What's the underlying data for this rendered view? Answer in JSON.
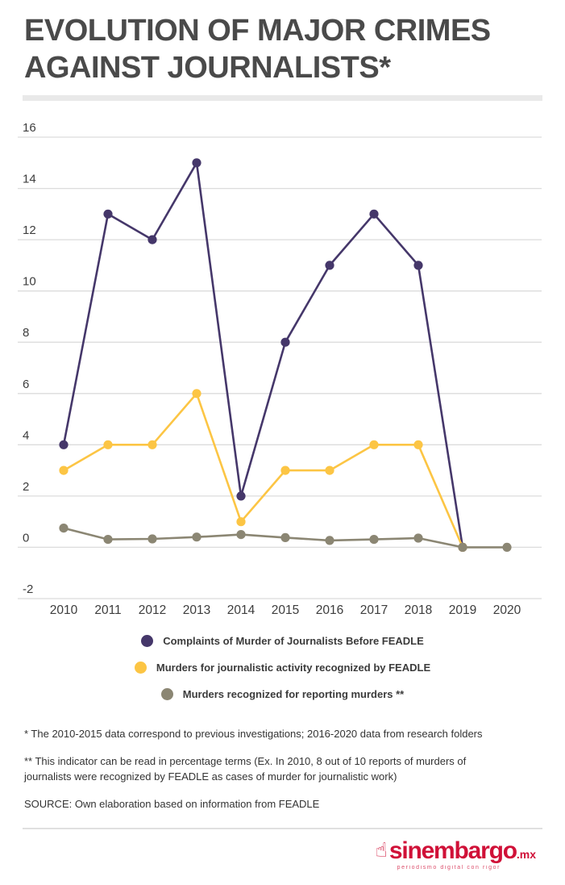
{
  "title": "EVOLUTION OF MAJOR CRIMES AGAINST JOURNALISTS*",
  "chart_data": {
    "type": "line",
    "title": "Evolution of major crimes against journalists",
    "x": [
      2010,
      2011,
      2012,
      2013,
      2014,
      2015,
      2016,
      2017,
      2018,
      2019,
      2020
    ],
    "series": [
      {
        "name": "Complaints of Murder of Journalists Before FEADLE",
        "color": "#45376a",
        "values": [
          4,
          13,
          12,
          15,
          2,
          8,
          11,
          13,
          11,
          0,
          null
        ]
      },
      {
        "name": "Murders for journalistic activity recognized by FEADLE",
        "color": "#fcc544",
        "values": [
          3,
          4,
          4,
          6,
          1,
          3,
          3,
          4,
          4,
          0,
          null
        ]
      },
      {
        "name": "Murders recognized for reporting murders **",
        "color": "#8b8673",
        "values": [
          0.75,
          0.31,
          0.33,
          0.4,
          0.5,
          0.38,
          0.27,
          0.31,
          0.36,
          0,
          0
        ]
      }
    ],
    "ylim": [
      -2,
      16
    ],
    "ytick_step": 2,
    "grid": true,
    "gridline_color": "#dcdcdc",
    "legend_position": "bottom",
    "xlabel": "",
    "ylabel": ""
  },
  "footnotes": [
    "* The 2010-2015 data correspond to previous investigations; 2016-2020 data from research folders",
    "** This indicator can be read in percentage terms (Ex. In 2010, 8 out of 10 reports of murders of journalists were recognized by FEADLE as cases of murder for journalistic work)",
    "SOURCE: Own elaboration based on information from FEADLE"
  ],
  "logo": {
    "brand": "sinembargo",
    "tld": ".mx",
    "tagline": "periodismo digital con rigor",
    "icon": "pointing-hand-icon",
    "color": "#d01138"
  }
}
